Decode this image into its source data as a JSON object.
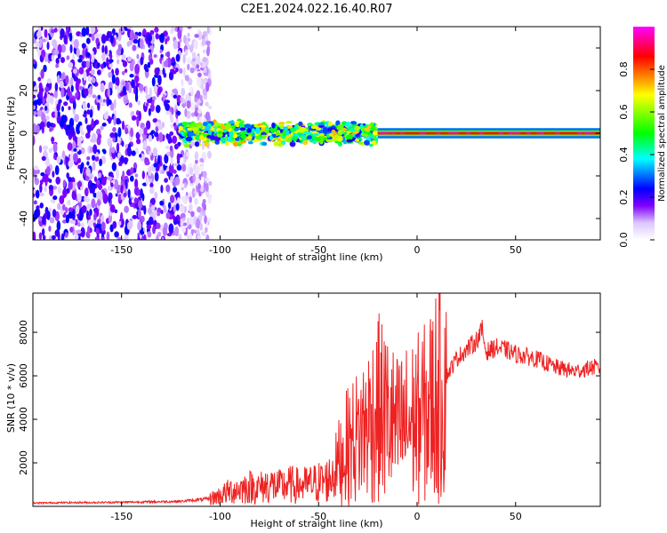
{
  "figure": {
    "title": "C2E1.2024.022.16.40.R07"
  },
  "chart_data": [
    {
      "type": "heatmap",
      "title": "C2E1.2024.022.16.40.R07",
      "xlabel": "Height of straight line (km)",
      "ylabel": "Frequency (Hz)",
      "xlim": [
        -195,
        93
      ],
      "ylim": [
        -50,
        50
      ],
      "x_ticks": [
        -150,
        -100,
        -50,
        0,
        50
      ],
      "y_ticks": [
        -40,
        -20,
        0,
        20,
        40
      ],
      "colorbar": {
        "label": "Normalized spectral amplitude",
        "ticks": [
          0.0,
          0.2,
          0.4,
          0.6,
          0.8
        ],
        "range": [
          0,
          1
        ],
        "colormap": [
          "#ffffff",
          "#7f00ff",
          "#0000ff",
          "#00ffff",
          "#00ff00",
          "#ffff00",
          "#ff0000",
          "#ff00ff"
        ]
      },
      "regions": [
        {
          "x_range": [
            -195,
            -105
          ],
          "description_amplitude": 0.15,
          "y_spread": 50
        },
        {
          "x_range": [
            -120,
            -20
          ],
          "description_amplitude": 0.5,
          "y_spread": 6
        },
        {
          "x_range": [
            -20,
            93
          ],
          "description_amplitude": 0.85,
          "y_spread": 1.5
        }
      ],
      "grid": false
    },
    {
      "type": "line",
      "xlabel": "Height of straight line (km)",
      "ylabel": "SNR (10 * v/v)",
      "xlim": [
        -195,
        93
      ],
      "ylim": [
        0,
        9800
      ],
      "x_ticks": [
        -150,
        -100,
        -50,
        0,
        50
      ],
      "y_ticks": [
        2000,
        4000,
        6000,
        8000
      ],
      "color": "#ee2222",
      "series": [
        {
          "x": [
            -195,
            -180,
            -160,
            -140,
            -120,
            -105,
            -100,
            -95,
            -90,
            -85,
            -80,
            -75,
            -70,
            -65,
            -60,
            -55,
            -50,
            -45,
            -40,
            -35,
            -30,
            -25,
            -22,
            -20,
            -15,
            -10,
            -5,
            0,
            5,
            10,
            15,
            20,
            25,
            30,
            33,
            35,
            40,
            45,
            50,
            55,
            60,
            65,
            70,
            75,
            80,
            85,
            90,
            93
          ],
          "y": [
            150,
            170,
            180,
            200,
            230,
            350,
            500,
            700,
            800,
            900,
            850,
            1000,
            900,
            1000,
            950,
            1000,
            1100,
            1200,
            2000,
            2800,
            3200,
            3800,
            4200,
            4500,
            4100,
            3500,
            3800,
            4000,
            4300,
            5200,
            6000,
            6800,
            7200,
            7600,
            8100,
            7100,
            7300,
            7200,
            7000,
            6900,
            6800,
            6600,
            6400,
            6300,
            6200,
            6300,
            6400,
            6300
          ]
        }
      ],
      "grid": false
    }
  ]
}
